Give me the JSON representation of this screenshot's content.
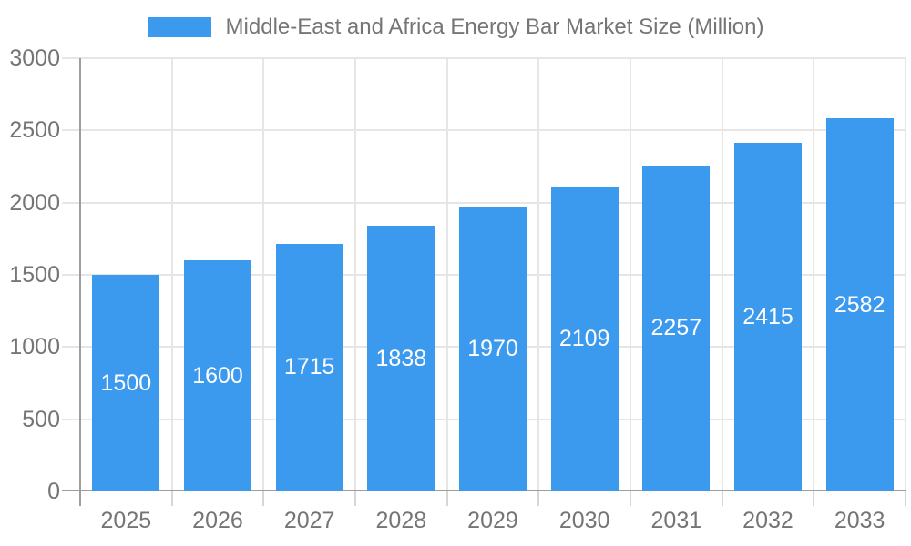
{
  "chart_data": {
    "type": "bar",
    "title": "Middle-East and Africa Energy Bar Market Size (Million)",
    "categories": [
      "2025",
      "2026",
      "2027",
      "2028",
      "2029",
      "2030",
      "2031",
      "2032",
      "2033"
    ],
    "values": [
      1500,
      1600,
      1715,
      1838,
      1970,
      2109,
      2257,
      2415,
      2582
    ],
    "xlabel": "",
    "ylabel": "",
    "ylim": [
      0,
      3000
    ],
    "yticks": [
      0,
      500,
      1000,
      1500,
      2000,
      2500,
      3000
    ],
    "grid": true,
    "legend_position": "top",
    "value_labels": "inside-center",
    "colors": {
      "bar": "#3B99EE",
      "value_label": "#FFFFFF",
      "text": "#757575",
      "axis": "#9E9E9E",
      "gridline": "#E6E6E6",
      "tick": "#D6D6D6",
      "background": "#FFFFFF"
    }
  }
}
